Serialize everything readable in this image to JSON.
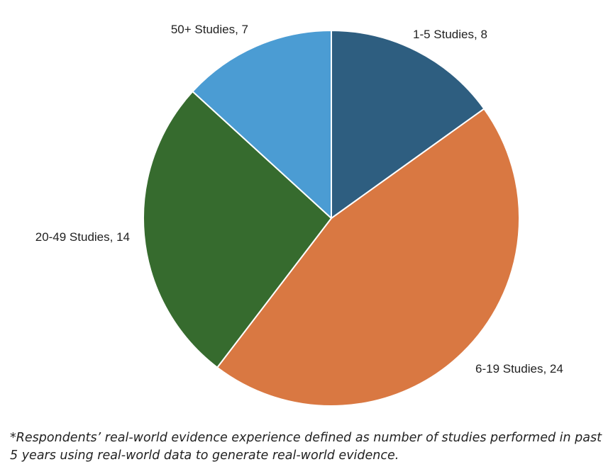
{
  "chart_data": {
    "type": "pie",
    "title": "",
    "slices": [
      {
        "label": "1-5 Studies, 8",
        "category": "1-5 Studies",
        "value": 8,
        "color": "#2E5E80"
      },
      {
        "label": "6-19 Studies, 24",
        "category": "6-19 Studies",
        "value": 24,
        "color": "#D97842"
      },
      {
        "label": "20-49 Studies, 14",
        "category": "20-49 Studies",
        "value": 14,
        "color": "#366B2E"
      },
      {
        "label": "50+ Studies, 7",
        "category": "50+ Studies",
        "value": 7,
        "color": "#4B9CD3"
      }
    ],
    "start": "12 o'clock",
    "direction": "clockwise",
    "slice_border_color": "#FFFFFF",
    "legend": "none"
  },
  "footnote": {
    "line1": "*Respondents’ real-world evidence experience defined as number of studies performed in past",
    "line2": "5 years using real-world data to generate real-world evidence."
  }
}
